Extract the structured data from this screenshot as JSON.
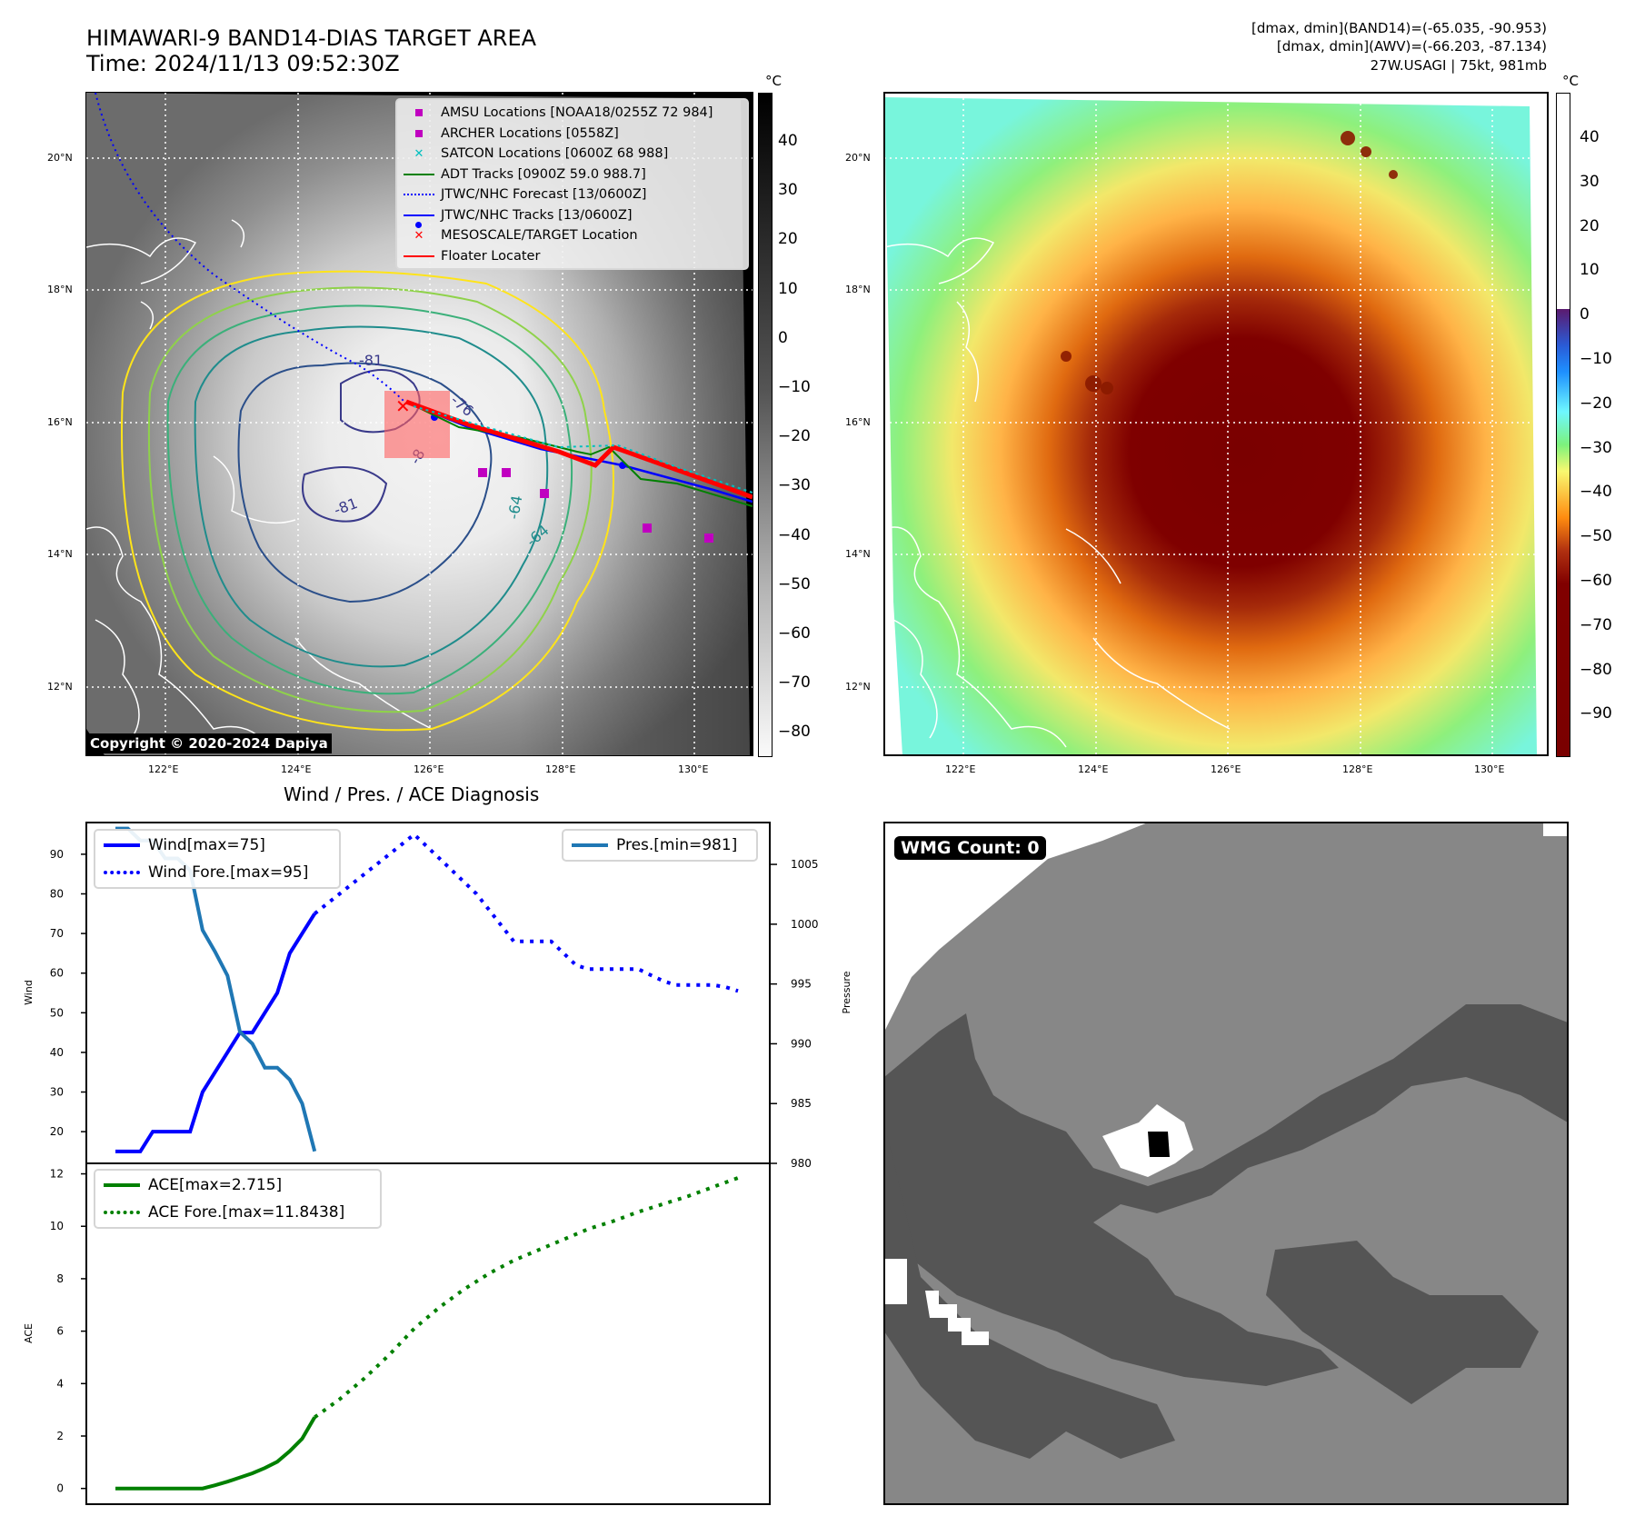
{
  "header": {
    "title_line1": "HIMAWARI-9 BAND14-DIAS TARGET AREA",
    "title_line2": "Time: 2024/11/13 09:52:30Z",
    "info_line1": "[dmax, dmin](BAND14)=(-65.035, -90.953)",
    "info_line2": "[dmax, dmin](AWV)=(-66.203, -87.134)",
    "info_line3": "27W.USAGI | 75kt, 981mb"
  },
  "left_map": {
    "lat_labels": [
      "20°N",
      "18°N",
      "16°N",
      "14°N",
      "12°N"
    ],
    "lon_labels": [
      "122°E",
      "124°E",
      "126°E",
      "128°E",
      "130°E"
    ],
    "copyright": "Copyright © 2020-2024 Dapiya",
    "contour_labels": [
      "-76",
      "-81",
      "-81",
      "-64",
      "-64",
      "-8"
    ],
    "legend": [
      {
        "label": "AMSU Locations [NOAA18/0255Z 72 984]",
        "symbol": "square",
        "color": "#c000c0"
      },
      {
        "label": "ARCHER Locations [0558Z]",
        "symbol": "square",
        "color": "#c000c0"
      },
      {
        "label": "SATCON Locations [0600Z 68 988]",
        "symbol": "x",
        "color": "#00bfbf"
      },
      {
        "label": "ADT Tracks [0900Z 59.0 988.7]",
        "symbol": "line",
        "color": "#008000"
      },
      {
        "label": "JTWC/NHC Forecast [13/0600Z]",
        "symbol": "dotted",
        "color": "#0000ff"
      },
      {
        "label": "JTWC/NHC Tracks [13/0600Z]",
        "symbol": "line-dot",
        "color": "#0000ff"
      },
      {
        "label": "MESOSCALE/TARGET Location",
        "symbol": "x",
        "color": "#ff0000"
      },
      {
        "label": "Floater Locater",
        "symbol": "line",
        "color": "#ff0000"
      }
    ],
    "colorbar": {
      "unit": "°C",
      "ticks": [
        "40",
        "30",
        "20",
        "10",
        "0",
        "−10",
        "−20",
        "−30",
        "−40",
        "−50",
        "−60",
        "−70",
        "−80"
      ]
    }
  },
  "right_map": {
    "lat_labels": [
      "20°N",
      "18°N",
      "16°N",
      "14°N",
      "12°N"
    ],
    "lon_labels": [
      "122°E",
      "124°E",
      "126°E",
      "128°E",
      "130°E"
    ],
    "colorbar": {
      "unit": "°C",
      "ticks": [
        "40",
        "30",
        "20",
        "10",
        "0",
        "−10",
        "−20",
        "−30",
        "−40",
        "−50",
        "−60",
        "−70",
        "−80",
        "−90"
      ]
    }
  },
  "diagnosis": {
    "title": "Wind / Pres. / ACE Diagnosis"
  },
  "wmg": {
    "label": "WMG Count: 0"
  },
  "chart_data": [
    {
      "type": "line",
      "title": "Wind / Pres. / ACE Diagnosis",
      "ylabel": "Wind",
      "y2label": "Pressure",
      "ylim": [
        12,
        98
      ],
      "y2lim": [
        980,
        1008.5
      ],
      "yticks": [
        "20",
        "30",
        "40",
        "50",
        "60",
        "70",
        "80",
        "90"
      ],
      "y2ticks": [
        "980",
        "985",
        "990",
        "995",
        "1000",
        "1005"
      ],
      "series": [
        {
          "name": "Wind[max=75]",
          "style": "solid",
          "color": "#0000ff",
          "axis": "left",
          "x": [
            0,
            1,
            2,
            3,
            4,
            5,
            6,
            7,
            8,
            9,
            10,
            11,
            12,
            13,
            14,
            15,
            16
          ],
          "values": [
            15,
            15,
            15,
            20,
            20,
            20,
            20,
            30,
            35,
            40,
            45,
            45,
            50,
            55,
            65,
            70,
            75
          ]
        },
        {
          "name": "Wind Fore.[max=95]",
          "style": "dotted",
          "color": "#0000ff",
          "axis": "left",
          "x": [
            16,
            17,
            18,
            19,
            20,
            21,
            22,
            23,
            24,
            25,
            26,
            27,
            28,
            29,
            30,
            31,
            32,
            33,
            34,
            35,
            36,
            37,
            38,
            39,
            40,
            41,
            42,
            43,
            44,
            45,
            46,
            47,
            48,
            49,
            50
          ],
          "values": [
            75,
            77.5,
            80,
            82.5,
            85,
            87.5,
            90,
            92.5,
            95,
            92,
            89,
            86,
            83,
            80,
            76,
            72,
            68,
            68,
            68,
            68,
            65,
            62,
            61,
            61,
            61,
            61,
            61,
            59.5,
            58,
            57,
            57,
            57,
            57,
            56.5,
            55.5
          ]
        },
        {
          "name": "Pres.[min=981]",
          "style": "solid",
          "color": "#1f77b4",
          "axis": "right",
          "x": [
            0,
            1,
            2,
            3,
            4,
            5,
            6,
            7,
            8,
            9,
            10,
            11,
            12,
            13,
            14,
            15,
            16
          ],
          "values": [
            1008,
            1008,
            1007,
            1007,
            1005.5,
            1005.5,
            1004.5,
            999.5,
            997.7,
            995.7,
            991,
            990,
            988,
            988,
            987,
            985,
            981
          ]
        }
      ]
    },
    {
      "type": "line",
      "ylabel": "ACE",
      "ylim": [
        -0.6,
        12.4
      ],
      "yticks": [
        "0",
        "2",
        "4",
        "6",
        "8",
        "10",
        "12"
      ],
      "series": [
        {
          "name": "ACE[max=2.715]",
          "style": "solid",
          "color": "#008000",
          "x": [
            0,
            1,
            2,
            3,
            4,
            5,
            6,
            7,
            8,
            9,
            10,
            11,
            12,
            13,
            14,
            15,
            16
          ],
          "values": [
            0,
            0,
            0,
            0,
            0,
            0,
            0,
            0,
            0.12,
            0.26,
            0.42,
            0.58,
            0.78,
            1.02,
            1.42,
            1.9,
            2.715
          ]
        },
        {
          "name": "ACE Fore.[max=11.8438]",
          "style": "dotted",
          "color": "#008000",
          "x": [
            16,
            18,
            20,
            22,
            24,
            26,
            28,
            30,
            32,
            34,
            36,
            38,
            40,
            42,
            44,
            46,
            48,
            50
          ],
          "values": [
            2.715,
            3.4,
            4.2,
            5.1,
            6.1,
            6.9,
            7.6,
            8.2,
            8.7,
            9.1,
            9.5,
            9.9,
            10.2,
            10.55,
            10.85,
            11.15,
            11.5,
            11.8438
          ]
        }
      ]
    }
  ]
}
